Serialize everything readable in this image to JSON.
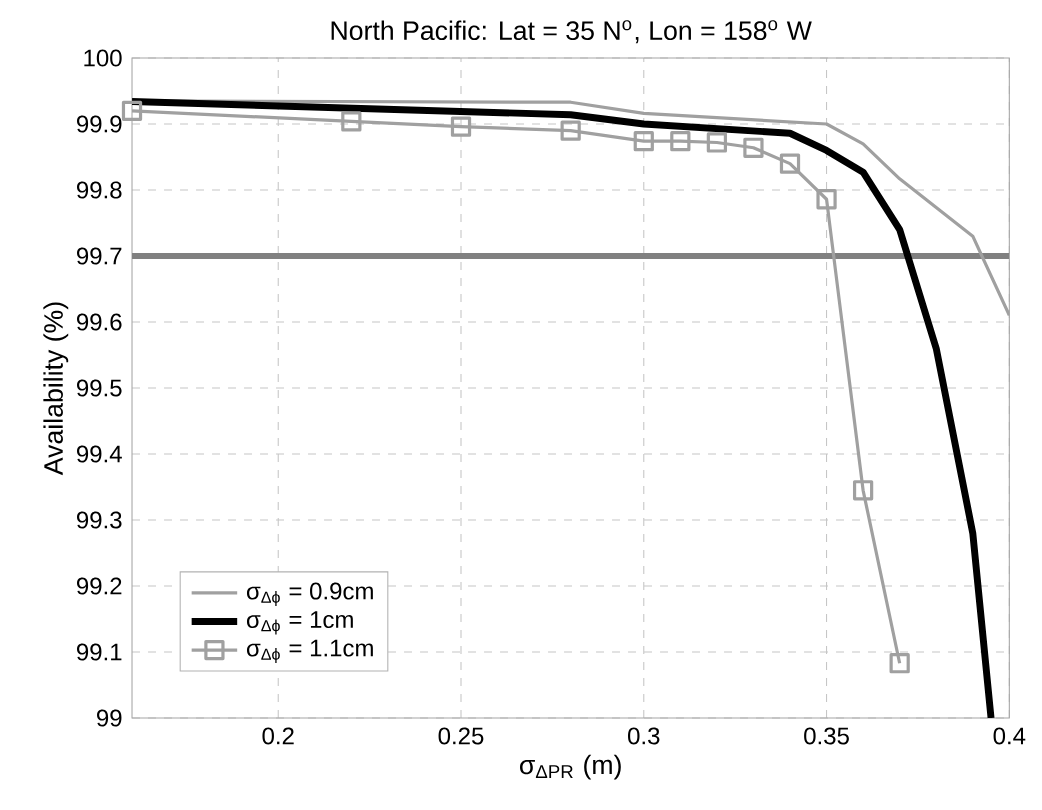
{
  "chart_data": {
    "type": "line",
    "title": "North Pacific: Lat = 35 N$^{o}$, Lon = 158$^{o}$ W",
    "xlabel": "σ$_{ΔPR}$ (m)",
    "ylabel": "Availability (%)",
    "xlim": [
      0.16,
      0.4
    ],
    "ylim": [
      99,
      100
    ],
    "xticks": [
      0.2,
      0.25,
      0.3,
      0.35,
      0.4
    ],
    "yticks": [
      99,
      99.1,
      99.2,
      99.3,
      99.4,
      99.5,
      99.6,
      99.7,
      99.8,
      99.9,
      100
    ],
    "grid": true,
    "legend": "bottom left",
    "series": [
      {
        "name": "σ$_{Δϕ}$ = 0.9cm",
        "color": "#a0a0a0",
        "marker": "none",
        "x": [
          0.16,
          0.28,
          0.3,
          0.35,
          0.36,
          0.37,
          0.39,
          0.4
        ],
        "values": [
          99.935,
          99.933,
          99.916,
          99.9,
          99.87,
          99.817,
          99.73,
          99.61
        ]
      },
      {
        "name": "σ$_{Δϕ}$ = 1cm",
        "color": "#000000",
        "marker": "none",
        "x": [
          0.16,
          0.28,
          0.3,
          0.34,
          0.35,
          0.36,
          0.37,
          0.38,
          0.39,
          0.395
        ],
        "values": [
          99.934,
          99.914,
          99.9,
          99.886,
          99.86,
          99.827,
          99.74,
          99.56,
          99.28,
          99.0
        ]
      },
      {
        "name": "σ$_{Δϕ}$ = 1.1cm",
        "color": "#a0a0a0",
        "marker": "square",
        "x": [
          0.16,
          0.22,
          0.25,
          0.28,
          0.3,
          0.31,
          0.32,
          0.33,
          0.34,
          0.35,
          0.36,
          0.37
        ],
        "values": [
          99.92,
          99.904,
          99.896,
          99.89,
          99.874,
          99.874,
          99.872,
          99.864,
          99.84,
          99.786,
          99.345,
          99.083
        ]
      }
    ],
    "ref_lines": [
      {
        "axis": "y",
        "value": 99.7,
        "color": "#808080"
      }
    ]
  }
}
